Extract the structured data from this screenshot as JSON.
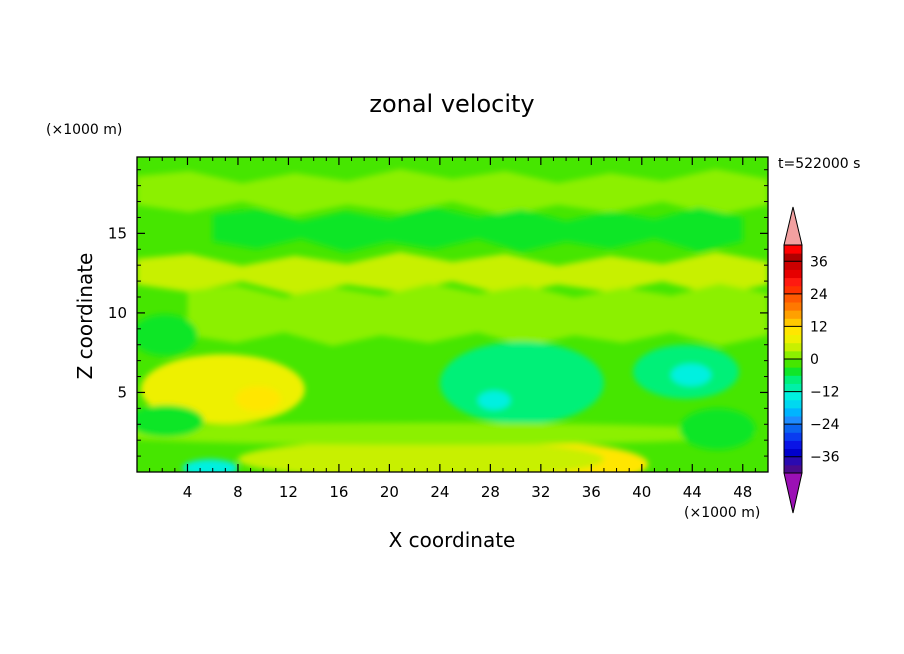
{
  "chart_data": {
    "type": "heatmap",
    "title": "zonal velocity",
    "xlabel": "X coordinate",
    "ylabel": "Z coordinate",
    "x_unit": "(×1000 m)",
    "z_unit": "(×1000 m)",
    "time_label": "t=522000 s",
    "xlim": [
      0,
      50
    ],
    "ylim": [
      0,
      19.8
    ],
    "x_ticks": [
      4,
      8,
      12,
      16,
      20,
      24,
      28,
      32,
      36,
      40,
      44,
      48
    ],
    "y_ticks": [
      5,
      10,
      15
    ],
    "colorbar": {
      "min": -42,
      "max": 42,
      "step": 3,
      "tick_values": [
        36,
        24,
        12,
        0,
        -12,
        -24,
        -36
      ],
      "tick_labels": [
        "36",
        "24",
        "12",
        "0",
        "−12",
        "−24",
        "−36"
      ],
      "over_color": "#f2a0a0",
      "under_color": "#9b10b5",
      "colors": [
        "#4a0a8c",
        "#2a0ab0",
        "#0000cc",
        "#0a14e6",
        "#0a3cf0",
        "#0a64f0",
        "#1e8cff",
        "#00b4ff",
        "#00d8f0",
        "#00f0e0",
        "#00f0a8",
        "#00f078",
        "#10e628",
        "#46e600",
        "#8cf000",
        "#c8f000",
        "#eef000",
        "#ffe600",
        "#ffc800",
        "#ffa000",
        "#ff7800",
        "#ff5a00",
        "#ff3200",
        "#ff1a10",
        "#e60000",
        "#cc0000",
        "#b00000",
        "#ff0000"
      ]
    },
    "background_level": -2,
    "regions": [
      {
        "name": "upper-green-band",
        "x": [
          0,
          50
        ],
        "z": [
          16.6,
          18.6
        ],
        "u": 2,
        "shape": "band"
      },
      {
        "name": "upper-teal-band",
        "x": [
          6,
          48
        ],
        "z": [
          14.3,
          16.2
        ],
        "u": -4,
        "shape": "band"
      },
      {
        "name": "mid-yellowgreen-band",
        "x": [
          0,
          50
        ],
        "z": [
          11.6,
          13.4
        ],
        "u": 5,
        "shape": "band"
      },
      {
        "name": "mid-green-band",
        "x": [
          4,
          50
        ],
        "z": [
          8.4,
          11.4
        ],
        "u": 2,
        "shape": "band"
      },
      {
        "name": "yellow-jet-left",
        "cx": 6.8,
        "cz": 5.2,
        "rx": 6.5,
        "rz": 2.2,
        "u": 7
      },
      {
        "name": "yellow-jet-core",
        "cx": 9.6,
        "cz": 4.6,
        "rx": 1.8,
        "rz": 0.8,
        "u": 11
      },
      {
        "name": "cyan-core-middle",
        "cx": 30.5,
        "cz": 5.6,
        "rx": 6.5,
        "rz": 2.6,
        "u": -8
      },
      {
        "name": "blue-spot-middle",
        "cx": 28.3,
        "cz": 4.5,
        "rx": 1.3,
        "rz": 0.6,
        "u": -13
      },
      {
        "name": "cyan-core-right",
        "cx": 43.5,
        "cz": 6.3,
        "rx": 4.2,
        "rz": 1.7,
        "u": -7
      },
      {
        "name": "blue-spot-right",
        "cx": 43.9,
        "cz": 6.1,
        "rx": 1.6,
        "rz": 0.7,
        "u": -13
      },
      {
        "name": "surface-yellow-jet",
        "cx": 31.0,
        "cz": 0.5,
        "rx": 9.5,
        "rz": 1.4,
        "u": 10
      },
      {
        "name": "surface-yellowgreen",
        "cx": 22.5,
        "cz": 0.8,
        "rx": 14.5,
        "rz": 1.2,
        "u": 5
      },
      {
        "name": "surface-blue-spot",
        "cx": 5.8,
        "cz": 0.25,
        "rx": 2.2,
        "rz": 0.55,
        "u": -13
      },
      {
        "name": "lower-green-band",
        "cx": 23.0,
        "cz": 2.4,
        "rx": 26.0,
        "rz": 0.7,
        "u": 2
      },
      {
        "name": "teal-right-lower",
        "cx": 46.0,
        "cz": 2.7,
        "rx": 3.0,
        "rz": 1.3,
        "u": -6
      },
      {
        "name": "teal-left-mid",
        "cx": 2.2,
        "cz": 8.6,
        "rx": 2.6,
        "rz": 1.3,
        "u": -4
      },
      {
        "name": "teal-lower-left",
        "cx": 2.3,
        "cz": 3.2,
        "rx": 3.0,
        "rz": 1.0,
        "u": -4
      }
    ]
  }
}
